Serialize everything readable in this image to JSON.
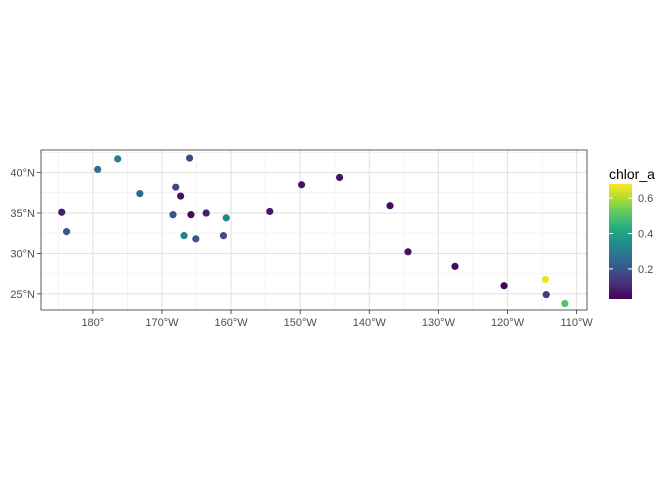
{
  "chart_data": {
    "type": "scatter",
    "title": "",
    "xlabel": "",
    "ylabel": "",
    "xlim": [
      -187.5,
      -108.5
    ],
    "ylim": [
      23.0,
      42.8
    ],
    "x_ticks": [
      {
        "value": -180,
        "label": "180°"
      },
      {
        "value": -170,
        "label": "170°W"
      },
      {
        "value": -160,
        "label": "160°W"
      },
      {
        "value": -150,
        "label": "150°W"
      },
      {
        "value": -140,
        "label": "140°W"
      },
      {
        "value": -130,
        "label": "130°W"
      },
      {
        "value": -120,
        "label": "120°W"
      },
      {
        "value": -110,
        "label": "110°W"
      }
    ],
    "y_ticks": [
      {
        "value": 25,
        "label": "25°N"
      },
      {
        "value": 30,
        "label": "30°N"
      },
      {
        "value": 35,
        "label": "35°N"
      },
      {
        "value": 40,
        "label": "40°N"
      }
    ],
    "grid": true,
    "legend": {
      "title": "chlor_a",
      "placement": "right",
      "range": [
        0.03,
        0.68
      ],
      "ticks": [
        {
          "value": 0.2,
          "label": "0.2"
        },
        {
          "value": 0.4,
          "label": "0.4"
        },
        {
          "value": 0.6,
          "label": "0.6"
        }
      ],
      "colormap": "viridis"
    },
    "points": [
      {
        "lon": -184.5,
        "lat": 35.1,
        "chlor_a": 0.08
      },
      {
        "lon": -183.8,
        "lat": 32.7,
        "chlor_a": 0.2
      },
      {
        "lon": -179.3,
        "lat": 40.4,
        "chlor_a": 0.28
      },
      {
        "lon": -176.4,
        "lat": 41.7,
        "chlor_a": 0.3
      },
      {
        "lon": -173.2,
        "lat": 37.4,
        "chlor_a": 0.25
      },
      {
        "lon": -168.4,
        "lat": 34.8,
        "chlor_a": 0.2
      },
      {
        "lon": -168.0,
        "lat": 38.2,
        "chlor_a": 0.18
      },
      {
        "lon": -167.3,
        "lat": 37.1,
        "chlor_a": 0.06
      },
      {
        "lon": -166.8,
        "lat": 32.2,
        "chlor_a": 0.32
      },
      {
        "lon": -166.0,
        "lat": 41.8,
        "chlor_a": 0.18
      },
      {
        "lon": -165.8,
        "lat": 34.8,
        "chlor_a": 0.05
      },
      {
        "lon": -165.1,
        "lat": 31.8,
        "chlor_a": 0.2
      },
      {
        "lon": -163.6,
        "lat": 35.0,
        "chlor_a": 0.08
      },
      {
        "lon": -161.1,
        "lat": 32.2,
        "chlor_a": 0.18
      },
      {
        "lon": -160.7,
        "lat": 34.4,
        "chlor_a": 0.32
      },
      {
        "lon": -154.4,
        "lat": 35.2,
        "chlor_a": 0.07
      },
      {
        "lon": -149.8,
        "lat": 38.5,
        "chlor_a": 0.07
      },
      {
        "lon": -144.3,
        "lat": 39.4,
        "chlor_a": 0.06
      },
      {
        "lon": -137.0,
        "lat": 35.9,
        "chlor_a": 0.05
      },
      {
        "lon": -134.4,
        "lat": 30.2,
        "chlor_a": 0.06
      },
      {
        "lon": -127.6,
        "lat": 28.4,
        "chlor_a": 0.05
      },
      {
        "lon": -120.5,
        "lat": 26.0,
        "chlor_a": 0.04
      },
      {
        "lon": -114.5,
        "lat": 26.8,
        "chlor_a": 0.66
      },
      {
        "lon": -114.4,
        "lat": 24.9,
        "chlor_a": 0.15
      },
      {
        "lon": -111.7,
        "lat": 23.8,
        "chlor_a": 0.5
      }
    ]
  }
}
